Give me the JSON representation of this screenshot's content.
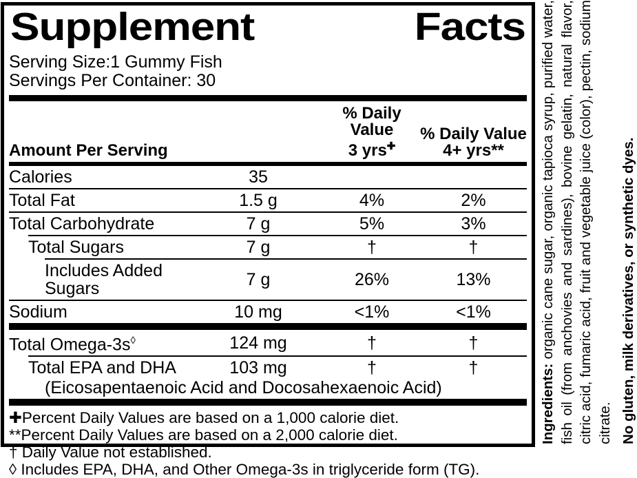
{
  "label": {
    "title": "Supplement Facts",
    "serving": {
      "size": "Serving Size:1 Gummy Fish",
      "per_container": "Servings Per Container: 30"
    },
    "table": {
      "header": {
        "amount": "Amount Per Serving",
        "dv3": {
          "line1": "% Daily Value",
          "line2": "3 yrs",
          "sup": "✚"
        },
        "dv4": {
          "line1": "% Daily Value",
          "line2": "4+ yrs**"
        }
      },
      "rows": [
        {
          "name": "Calories",
          "amount": "35",
          "dv3": "",
          "dv4": "",
          "indent": 0,
          "rule_below": "thin"
        },
        {
          "name": "Total Fat",
          "amount": "1.5 g",
          "dv3": "4%",
          "dv4": "2%",
          "indent": 0,
          "rule_below": "thin"
        },
        {
          "name": "Total Carbohydrate",
          "amount": "7 g",
          "dv3": "5%",
          "dv4": "3%",
          "indent": 0,
          "rule_below": "thin-indent1"
        },
        {
          "name": "Total Sugars",
          "amount": "7 g",
          "dv3": "†",
          "dv4": "†",
          "indent": 1,
          "rule_below": "thin-indent2"
        },
        {
          "name": "Includes Added Sugars",
          "amount": "7 g",
          "dv3": "26%",
          "dv4": "13%",
          "indent": 2,
          "rule_below": "thin"
        },
        {
          "name": "Sodium",
          "amount": "10 mg",
          "dv3": "<1%",
          "dv4": "<1%",
          "indent": 0,
          "rule_below": "bar"
        },
        {
          "name": "Total Omega-3s",
          "name_sup": "◊",
          "amount": "124 mg",
          "dv3": "†",
          "dv4": "†",
          "indent": 0,
          "rule_below": "thin-indent1"
        },
        {
          "name": "Total EPA and DHA",
          "subtext": "(Eicosapentaenoic Acid and Docosahexaenoic Acid)",
          "amount": "103 mg",
          "dv3": "†",
          "dv4": "†",
          "indent": 1,
          "rule_below": "bar"
        }
      ]
    },
    "footnotes": [
      "✚Percent Daily Values are based on a 1,000 calorie diet.",
      "**Percent Daily Values are based on a 2,000 calorie diet.",
      "† Daily Value not established.",
      "◊ Includes EPA, DHA, and Other Omega-3s in triglyceride form (TG)."
    ],
    "ingredients": {
      "label": "Ingredients:",
      "text": " organic cane sugar, organic tapioca syrup, purified water, fish oil (from anchovies and sardines), bovine gelatin, natural flavor, citric acid, fumaric acid, fruit and vegetable juice (color), pectin, sodium citrate.",
      "claim": "No gluten, milk derivatives, or synthetic dyes."
    },
    "colors": {
      "ink": "#000000",
      "background": "#ffffff"
    }
  }
}
